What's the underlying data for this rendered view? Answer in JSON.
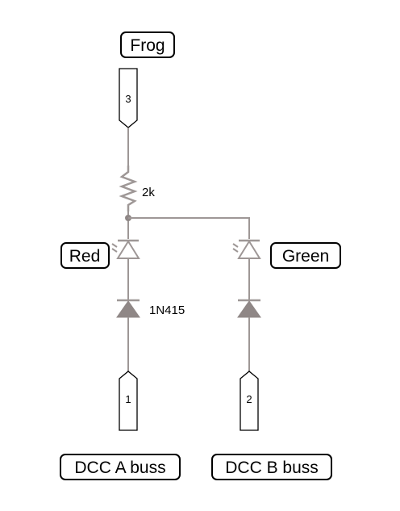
{
  "labels": {
    "frog": "Frog",
    "red": "Red",
    "green": "Green",
    "dcc_a": "DCC A buss",
    "dcc_b": "DCC B buss"
  },
  "pins": {
    "top": "3",
    "left_bottom": "1",
    "right_bottom": "2"
  },
  "components": {
    "resistor_value": "2k",
    "diode_part": "1N415"
  },
  "colors": {
    "wire": "#9e9796",
    "symbol_fill": "#8f8786",
    "outline": "#000000"
  }
}
